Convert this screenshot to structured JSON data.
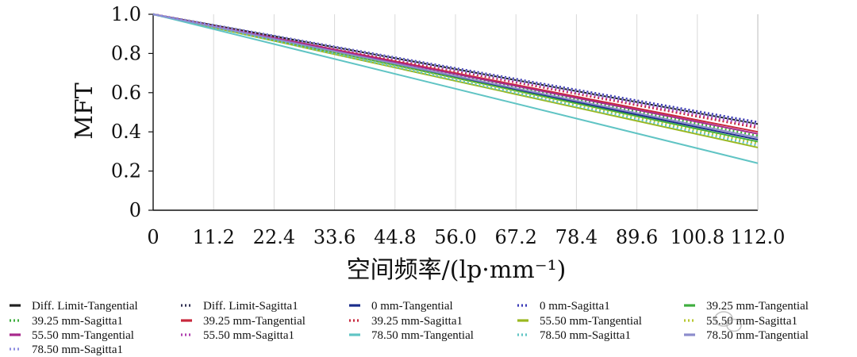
{
  "chart_data": {
    "type": "line",
    "xlabel": "空间频率/(lp·mm⁻¹)",
    "ylabel": "MFT",
    "xlim": [
      0,
      112
    ],
    "ylim": [
      0,
      1.0
    ],
    "x_ticks": [
      "0",
      "11.2",
      "22.4",
      "33.6",
      "44.8",
      "56.0",
      "67.2",
      "78.4",
      "89.6",
      "100.8",
      "112.0"
    ],
    "y_ticks": [
      "0",
      "0.2",
      "0.4",
      "0.6",
      "0.8",
      "1.0"
    ],
    "grid": "vertical",
    "legend_position": "bottom",
    "series": [
      {
        "name": "Diff. Limit-Tangential",
        "color": "#222222",
        "dash": "solid",
        "x": [
          0,
          112
        ],
        "y": [
          1.0,
          0.44
        ]
      },
      {
        "name": "Diff. Limit-Sagitta1",
        "color": "#333355",
        "dash": "dotted",
        "x": [
          0,
          112
        ],
        "y": [
          1.0,
          0.445
        ]
      },
      {
        "name": "0 mm-Tangential",
        "color": "#1a2d8c",
        "dash": "solid",
        "x": [
          0,
          112
        ],
        "y": [
          1.0,
          0.36
        ]
      },
      {
        "name": "0 mm-Sagitta1",
        "color": "#3a3ab8",
        "dash": "dotted",
        "x": [
          0,
          112
        ],
        "y": [
          1.0,
          0.45
        ]
      },
      {
        "name": "39.25 mm-Tangential",
        "color": "#3fae3f",
        "dash": "solid",
        "x": [
          0,
          112
        ],
        "y": [
          1.0,
          0.35
        ]
      },
      {
        "name": "39.25 mm-Sagitta1",
        "color": "#3fae3f",
        "dash": "dotted",
        "x": [
          0,
          112
        ],
        "y": [
          1.0,
          0.38
        ]
      },
      {
        "name": "39.25 mm-Tangential",
        "color": "#c8283c",
        "dash": "solid",
        "x": [
          0,
          112
        ],
        "y": [
          1.0,
          0.4
        ]
      },
      {
        "name": "39.25 mm-Sagitta1",
        "color": "#c8283c",
        "dash": "dotted",
        "x": [
          0,
          112
        ],
        "y": [
          1.0,
          0.42
        ]
      },
      {
        "name": "55.50 mm-Tangential",
        "color": "#9ab820",
        "dash": "solid",
        "x": [
          0,
          112
        ],
        "y": [
          1.0,
          0.32
        ]
      },
      {
        "name": "55.50 mm-Sagitta1",
        "color": "#b8c830",
        "dash": "dotted",
        "x": [
          0,
          112
        ],
        "y": [
          1.0,
          0.34
        ]
      },
      {
        "name": "55.50 mm-Tangential",
        "color": "#a8288c",
        "dash": "solid",
        "x": [
          0,
          112
        ],
        "y": [
          1.0,
          0.39
        ]
      },
      {
        "name": "55.50 mm-Sagitta1",
        "color": "#b040b0",
        "dash": "dotted",
        "x": [
          0,
          112
        ],
        "y": [
          1.0,
          0.43
        ]
      },
      {
        "name": "78.50 mm-Tangential",
        "color": "#60c4c4",
        "dash": "solid",
        "x": [
          0,
          112
        ],
        "y": [
          1.0,
          0.24
        ]
      },
      {
        "name": "78.50 mm-Sagitta1",
        "color": "#60c4c4",
        "dash": "dotted",
        "x": [
          0,
          112
        ],
        "y": [
          1.0,
          0.33
        ]
      },
      {
        "name": "78.50 mm-Tangential",
        "color": "#8c8ccc",
        "dash": "solid",
        "x": [
          0,
          112
        ],
        "y": [
          1.0,
          0.37
        ]
      },
      {
        "name": "78.50 mm-Sagitta1",
        "color": "#8c8ce0",
        "dash": "dotted",
        "x": [
          0,
          112
        ],
        "y": [
          1.0,
          0.44
        ]
      }
    ]
  }
}
